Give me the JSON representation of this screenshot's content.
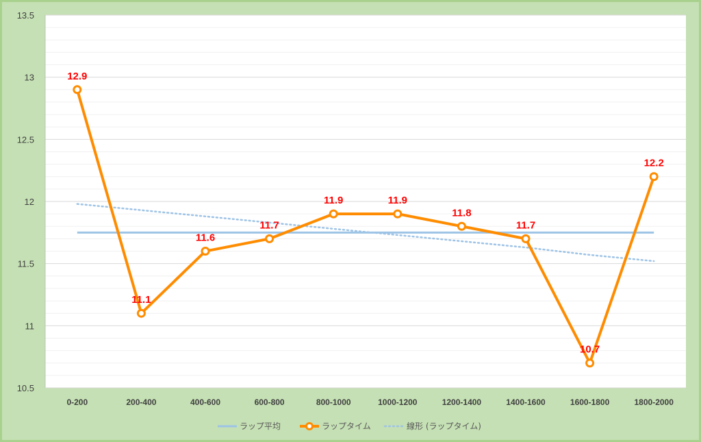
{
  "chart_data": {
    "type": "line",
    "categories": [
      "0-200",
      "200-400",
      "400-600",
      "600-800",
      "800-1000",
      "1000-1200",
      "1200-1400",
      "1400-1600",
      "1600-1800",
      "1800-2000"
    ],
    "series": [
      {
        "name": "ラップ平均",
        "kind": "average",
        "color": "#9dc3e6",
        "values": [
          11.75,
          11.75,
          11.75,
          11.75,
          11.75,
          11.75,
          11.75,
          11.75,
          11.75,
          11.75
        ]
      },
      {
        "name": "ラップタイム",
        "kind": "line-markers",
        "color": "#ff8c00",
        "values": [
          12.9,
          11.1,
          11.6,
          11.7,
          11.9,
          11.9,
          11.8,
          11.7,
          10.7,
          12.2
        ]
      },
      {
        "name": "線形 (ラップタイム)",
        "kind": "trendline",
        "color": "#9dc3e6",
        "values": [
          11.98,
          11.93,
          11.88,
          11.83,
          11.78,
          11.73,
          11.68,
          11.63,
          11.57,
          11.52
        ]
      }
    ],
    "data_labels": [
      "12.9",
      "11.1",
      "11.6",
      "11.7",
      "11.9",
      "11.9",
      "11.8",
      "11.7",
      "10.7",
      "12.2"
    ],
    "ylim": [
      10.5,
      13.5
    ],
    "yticks": [
      "10.5",
      "11",
      "11.5",
      "12",
      "12.5",
      "13",
      "13.5"
    ],
    "grid": true,
    "legend_position": "bottom",
    "colors": {
      "background": "#c5e0b4",
      "plot": "#ffffff",
      "label": "#ff0000"
    }
  }
}
